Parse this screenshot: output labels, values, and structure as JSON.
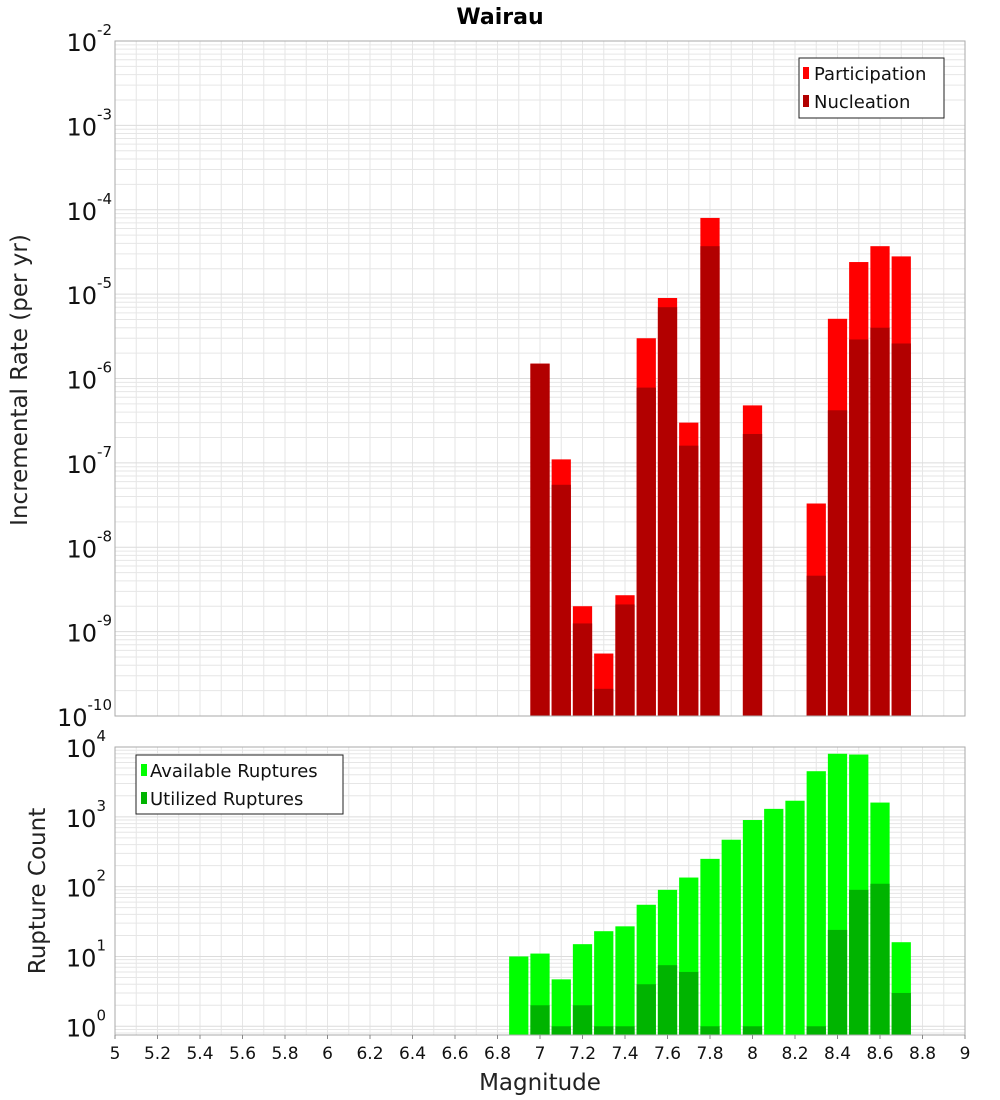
{
  "title": "Wairau",
  "colors": {
    "participation": "#ff0000",
    "nucleation": "#b20000",
    "available": "#00ff00",
    "utilized": "#00b400",
    "grid": "#e6e6e6",
    "frame": "#aaaaaa"
  },
  "chart_data": [
    {
      "type": "bar",
      "ylabel": "Incremental Rate (per yr)",
      "yscale": "log",
      "ylim": [
        1e-10,
        0.01
      ],
      "xlim": [
        5,
        9
      ],
      "legend": "top-right",
      "series": [
        {
          "name": "Participation",
          "x": [
            7.0,
            7.1,
            7.2,
            7.3,
            7.4,
            7.5,
            7.6,
            7.7,
            7.8,
            8.0,
            8.3,
            8.4,
            8.5,
            8.6,
            8.7
          ],
          "values": [
            1.5e-06,
            1.1e-07,
            2e-09,
            5.5e-10,
            2.7e-09,
            3e-06,
            9e-06,
            3e-07,
            8e-05,
            4.8e-07,
            3.3e-08,
            5.1e-06,
            2.4e-05,
            3.7e-05,
            2.8e-05
          ]
        },
        {
          "name": "Nucleation",
          "x": [
            7.0,
            7.1,
            7.2,
            7.3,
            7.4,
            7.5,
            7.6,
            7.7,
            7.8,
            8.0,
            8.3,
            8.4,
            8.5,
            8.6,
            8.7
          ],
          "values": [
            1.5e-06,
            5.5e-08,
            1.25e-09,
            2.1e-10,
            2.1e-09,
            7.8e-07,
            7e-06,
            1.6e-07,
            3.7e-05,
            2.2e-07,
            4.6e-09,
            4.2e-07,
            2.9e-06,
            4e-06,
            2.6e-06
          ]
        }
      ]
    },
    {
      "type": "bar",
      "xlabel": "Magnitude",
      "ylabel": "Rupture Count",
      "yscale": "log",
      "ylim": [
        0.75,
        10000
      ],
      "xlim": [
        5,
        9
      ],
      "legend": "top-left",
      "series": [
        {
          "name": "Available Ruptures",
          "x": [
            6.9,
            7.0,
            7.1,
            7.2,
            7.3,
            7.4,
            7.5,
            7.6,
            7.7,
            7.8,
            7.9,
            8.0,
            8.1,
            8.2,
            8.3,
            8.4,
            8.5,
            8.6,
            8.7
          ],
          "values": [
            10,
            11,
            4.7,
            15,
            23,
            27,
            55,
            90,
            135,
            250,
            470,
            900,
            1300,
            1700,
            4500,
            8000,
            7800,
            1600,
            16
          ]
        },
        {
          "name": "Utilized Ruptures",
          "x": [
            7.0,
            7.1,
            7.2,
            7.3,
            7.4,
            7.5,
            7.6,
            7.7,
            7.8,
            8.0,
            8.3,
            8.4,
            8.5,
            8.6,
            8.7
          ],
          "values": [
            2,
            1,
            2,
            1,
            1,
            4,
            7.5,
            6,
            1,
            1,
            1,
            24,
            90,
            110,
            3
          ]
        }
      ]
    }
  ],
  "xticks": [
    "5",
    "5.2",
    "5.4",
    "5.6",
    "5.8",
    "6",
    "6.2",
    "6.4",
    "6.6",
    "6.8",
    "7",
    "7.2",
    "7.4",
    "7.6",
    "7.8",
    "8",
    "8.2",
    "8.4",
    "8.6",
    "8.8",
    "9"
  ],
  "top_yticks": [
    "-2",
    "-3",
    "-4",
    "-5",
    "-6",
    "-7",
    "-8",
    "-9",
    "-10"
  ],
  "bottom_yticks": [
    "4",
    "3",
    "2",
    "1",
    "0"
  ],
  "tick_base": "10"
}
